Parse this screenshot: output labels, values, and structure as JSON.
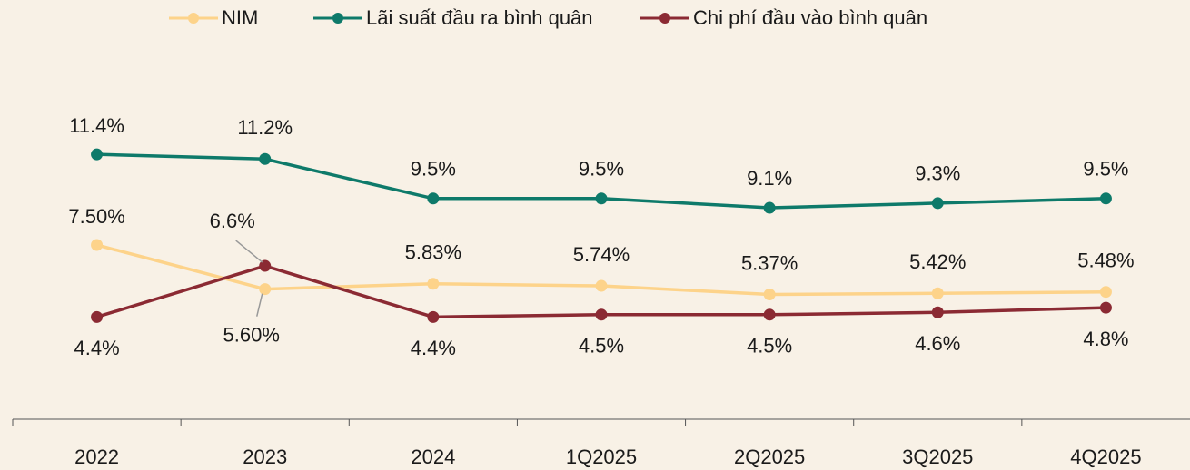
{
  "chart_data": {
    "type": "line",
    "categories": [
      "2022",
      "2023",
      "2024",
      "1Q2025",
      "2Q2025",
      "3Q2025",
      "4Q2025"
    ],
    "ylim": [
      0,
      18
    ],
    "series": [
      {
        "name": "NIM",
        "color": "#fdd38a",
        "values": [
          7.5,
          5.6,
          5.83,
          5.74,
          5.37,
          5.42,
          5.48
        ],
        "value_labels": [
          "7.50%",
          "5.60%",
          "5.83%",
          "5.74%",
          "5.37%",
          "5.42%",
          "5.48%"
        ]
      },
      {
        "name": "Lãi suất đầu ra bình quân",
        "color": "#0e7a6a",
        "values": [
          11.4,
          11.2,
          9.5,
          9.5,
          9.1,
          9.3,
          9.5
        ],
        "value_labels": [
          "11.4%",
          "11.2%",
          "9.5%",
          "9.5%",
          "9.1%",
          "9.3%",
          "9.5%"
        ]
      },
      {
        "name": "Chi phí đầu vào bình quân",
        "color": "#8b2a33",
        "values": [
          4.4,
          6.6,
          4.4,
          4.5,
          4.5,
          4.6,
          4.8
        ],
        "value_labels": [
          "4.4%",
          "6.6%",
          "4.4%",
          "4.5%",
          "4.5%",
          "4.6%",
          "4.8%"
        ]
      }
    ]
  }
}
